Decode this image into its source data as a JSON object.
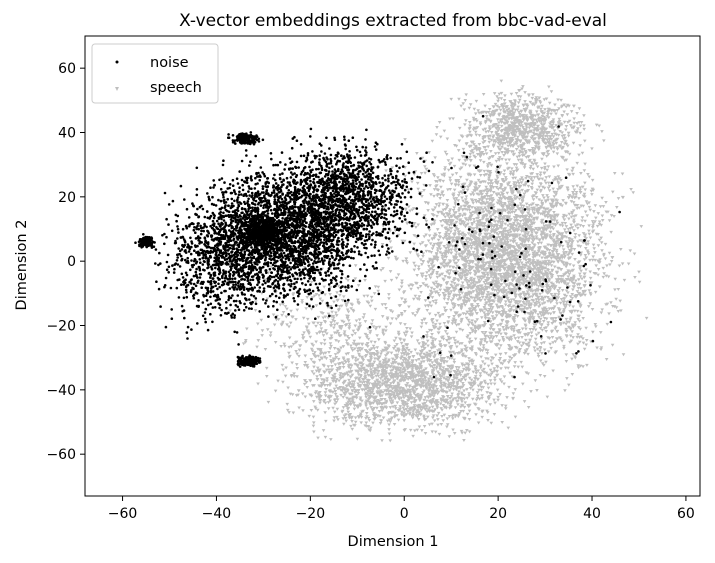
{
  "chart_data": {
    "type": "scatter",
    "title": "X-vector embeddings extracted from bbc-vad-eval",
    "xlabel": "Dimension 1",
    "ylabel": "Dimension 2",
    "xlim": [
      -68,
      63
    ],
    "ylim": [
      -73,
      70
    ],
    "xticks": [
      -60,
      -40,
      -20,
      0,
      20,
      40,
      60
    ],
    "yticks": [
      -60,
      -40,
      -20,
      0,
      20,
      40,
      60
    ],
    "grid": false,
    "legend_position": "top-left",
    "series": [
      {
        "name": "noise",
        "color": "#000000",
        "marker": "dot",
        "clusters": [
          {
            "cx": -26,
            "cy": 8,
            "rx": 30,
            "ry": 34,
            "n": 2600
          },
          {
            "cx": -12,
            "cy": 20,
            "rx": 24,
            "ry": 28,
            "n": 1300
          },
          {
            "cx": -33,
            "cy": -31,
            "rx": 4,
            "ry": 2.5,
            "n": 220
          },
          {
            "cx": -34,
            "cy": 38,
            "rx": 5,
            "ry": 3,
            "n": 160
          },
          {
            "cx": -55,
            "cy": 6,
            "rx": 3,
            "ry": 3,
            "n": 120
          },
          {
            "cx": -30,
            "cy": 9,
            "rx": 9,
            "ry": 9,
            "n": 500
          },
          {
            "cx": -40,
            "cy": 0,
            "rx": 20,
            "ry": 34,
            "n": 600
          },
          {
            "cx": 20,
            "cy": 0,
            "rx": 40,
            "ry": 60,
            "n": 120
          }
        ]
      },
      {
        "name": "speech",
        "color": "#bfbfbf",
        "marker": "triangle",
        "clusters": [
          {
            "cx": 22,
            "cy": 2,
            "rx": 36,
            "ry": 58,
            "n": 4200
          },
          {
            "cx": 0,
            "cy": -38,
            "rx": 38,
            "ry": 24,
            "n": 1800
          },
          {
            "cx": 25,
            "cy": 42,
            "rx": 22,
            "ry": 18,
            "n": 800
          },
          {
            "cx": -15,
            "cy": -20,
            "rx": 30,
            "ry": 30,
            "n": 400
          }
        ]
      }
    ]
  }
}
